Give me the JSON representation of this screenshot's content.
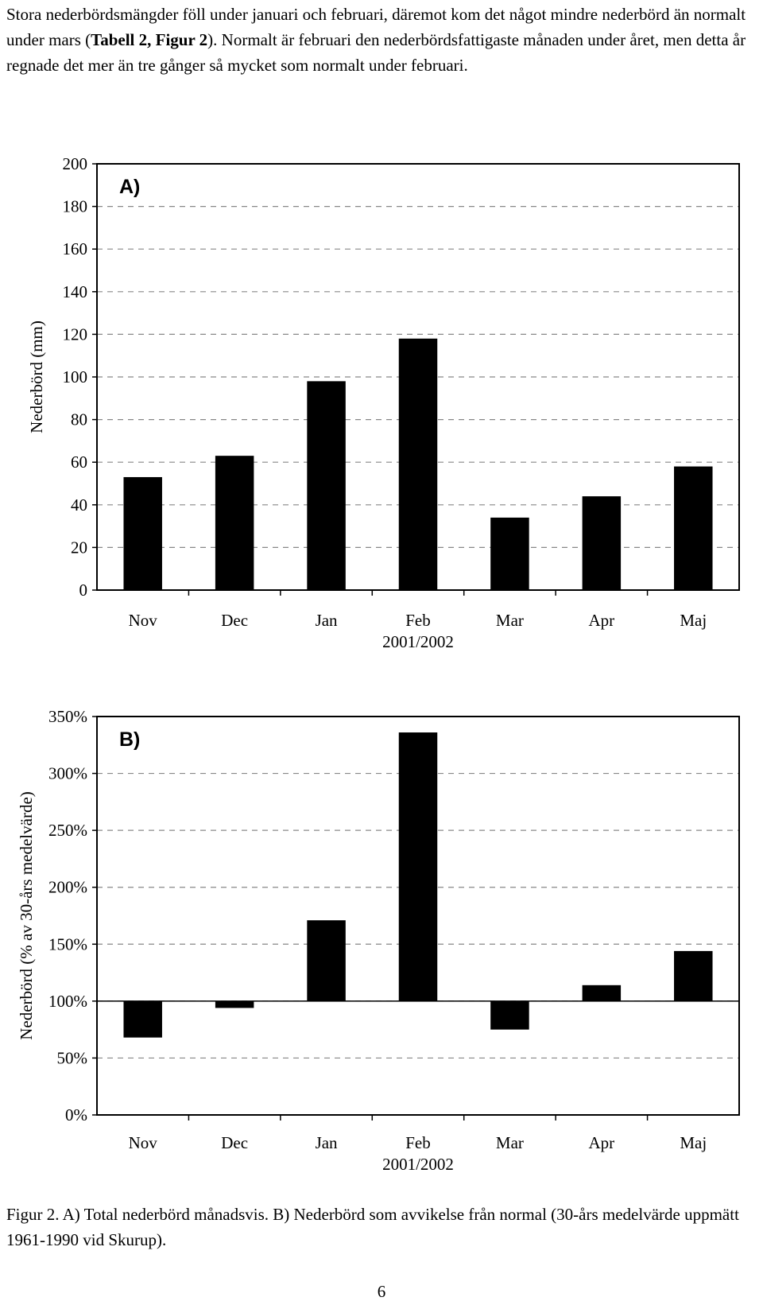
{
  "paragraph": {
    "part1": "Stora nederbördsmängder föll under januari och februari, däremot kom det något mindre nederbörd än normalt under mars (",
    "ref": "Tabell 2, Figur 2",
    "part2": "). Normalt är februari den nederbördsfattigaste månaden under året, men detta år regnade det mer än tre gånger så mycket som normalt under februari."
  },
  "chart_data": [
    {
      "type": "bar",
      "panel_label": "A)",
      "categories": [
        "Nov",
        "Dec",
        "Jan",
        "Feb",
        "Mar",
        "Apr",
        "Maj"
      ],
      "xlabel": "2001/2002",
      "ylabel": "Nederbörd (mm)",
      "ylim": [
        0,
        200
      ],
      "yticks": [
        "0",
        "20",
        "40",
        "60",
        "80",
        "100",
        "120",
        "140",
        "160",
        "180",
        "200"
      ],
      "values": [
        53,
        63,
        98,
        118,
        34,
        44,
        58
      ],
      "grid": "horizontal dashed",
      "bar_color": "#000000"
    },
    {
      "type": "bar",
      "panel_label": "B)",
      "categories": [
        "Nov",
        "Dec",
        "Jan",
        "Feb",
        "Mar",
        "Apr",
        "Maj"
      ],
      "xlabel": "2001/2002",
      "ylabel": "Nederbörd (% av 30-års medelvärde)",
      "ylim": [
        0,
        350
      ],
      "yticks": [
        "0%",
        "50%",
        "100%",
        "150%",
        "200%",
        "250%",
        "300%",
        "350%"
      ],
      "baseline": 100,
      "values": [
        68,
        94,
        171,
        336,
        75,
        114,
        144
      ],
      "grid": "horizontal dashed",
      "bar_color": "#000000"
    }
  ],
  "caption": "Figur 2. A) Total nederbörd månadsvis. B) Nederbörd som avvikelse från normal (30-års medelvärde uppmätt 1961-1990 vid Skurup).",
  "page_number": "6"
}
